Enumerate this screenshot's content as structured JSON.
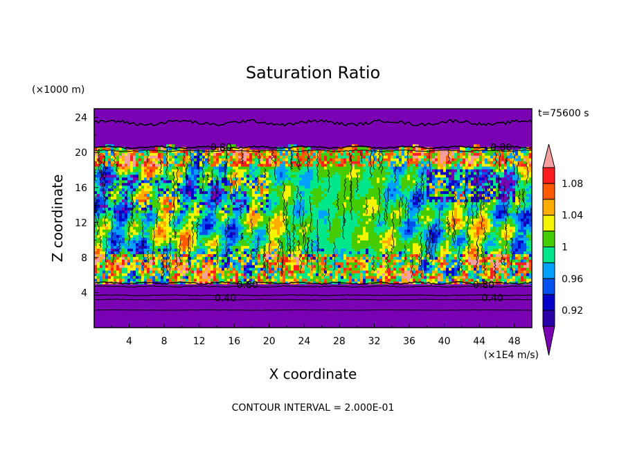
{
  "chart_data": {
    "type": "heatmap",
    "title": "Saturation Ratio",
    "xlabel": "X coordinate",
    "ylabel": "Z coordinate",
    "x_unit": "(×1E4 m/s)",
    "y_unit": "(×1000 m)",
    "time_label": "t=75600 s",
    "footer": "CONTOUR INTERVAL = 2.000E-01",
    "xlim": [
      0,
      50
    ],
    "ylim": [
      0,
      25
    ],
    "x_ticks": [
      "4",
      "8",
      "12",
      "16",
      "20",
      "24",
      "28",
      "32",
      "36",
      "40",
      "44",
      "48"
    ],
    "y_ticks": [
      "4",
      "8",
      "12",
      "16",
      "20",
      "24"
    ],
    "colorbar": {
      "levels": [
        0.9,
        0.92,
        0.94,
        0.96,
        0.98,
        1.0,
        1.02,
        1.04,
        1.06,
        1.08,
        1.1
      ],
      "labels": [
        "0.92",
        "0.96",
        "1",
        "1.04",
        "1.08"
      ],
      "colors": [
        "#7a00b4",
        "#2a00a8",
        "#0000c8",
        "#0050f0",
        "#00a0ff",
        "#00e68a",
        "#44cc00",
        "#f5f500",
        "#ffae00",
        "#ff5a00",
        "#ff1e1e",
        "#f5a0a0"
      ],
      "extend": "both"
    },
    "contour_labels": [
      "0.80",
      "0.80",
      "0.80",
      "0.80",
      "0.40",
      "0.40"
    ],
    "field_summary": [
      {
        "z_range": [
          0,
          5
        ],
        "value": 0.4
      },
      {
        "z_range": [
          5,
          20.5
        ],
        "value": 1.0
      },
      {
        "z_range": [
          20.5,
          25
        ],
        "value": 0.4
      }
    ],
    "grid": false,
    "legend_position": "right"
  }
}
